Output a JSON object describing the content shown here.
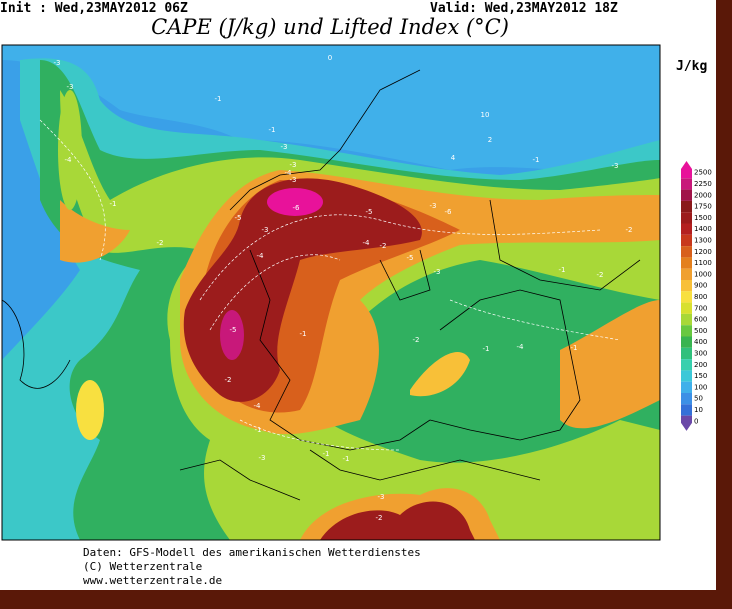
{
  "header": {
    "init": "Init : Wed,23MAY2012 06Z",
    "valid": "Valid: Wed,23MAY2012 18Z",
    "title": "CAPE (J/kg) und Lifted Index (°C)"
  },
  "colorbar": {
    "unit": "J/kg",
    "levels": [
      2500,
      2250,
      2000,
      1750,
      1500,
      1400,
      1300,
      1200,
      1100,
      1000,
      900,
      800,
      700,
      600,
      500,
      400,
      300,
      200,
      150,
      100,
      50,
      10,
      0
    ],
    "colors": [
      "#e8129a",
      "#c8187a",
      "#a01448",
      "#8a1a1a",
      "#9c1c1c",
      "#b42020",
      "#c8381c",
      "#d8601c",
      "#e4801e",
      "#f0a030",
      "#f8c038",
      "#f8e040",
      "#d8e030",
      "#a8d838",
      "#68c840",
      "#38b450",
      "#30c07c",
      "#38d0ae",
      "#3cc8d8",
      "#40b0ea",
      "#3c90e6",
      "#3470d8",
      "#6a48a8"
    ]
  },
  "li_labels": [
    "-3",
    "-3",
    "-4",
    "-1",
    "-2",
    "-3",
    "-1",
    "-1",
    "-4",
    "-3",
    "-3",
    "-6",
    "-3",
    "-5",
    "-4",
    "-5",
    "-2",
    "-4",
    "-3",
    "-6",
    "-5",
    "-3",
    "-1",
    "-2",
    "-1",
    "-3",
    "-2",
    "-1",
    "-4",
    "-1",
    "-2",
    "-1",
    "-5",
    "-2",
    "-4",
    "-1",
    "-3",
    "-1",
    "-1",
    "-3",
    "-2",
    "10",
    "0",
    "4",
    "2"
  ],
  "footer": [
    "Daten: GFS-Modell des amerikanischen Wetterdienstes",
    "(C) Wetterzentrale",
    "www.wetterzentrale.de"
  ]
}
